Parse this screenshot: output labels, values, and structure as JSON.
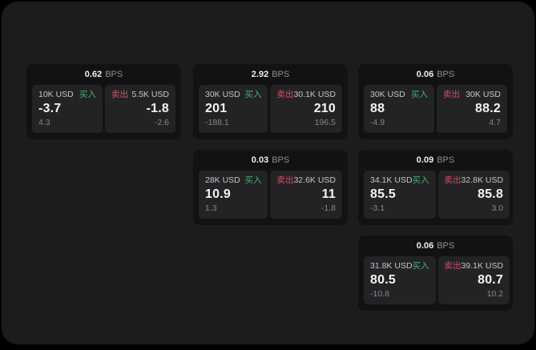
{
  "app": {
    "background_color": "#000000",
    "panel_color": "#1c1c1e",
    "card_color": "#121214",
    "subpanel_color": "#232326"
  },
  "colors": {
    "buy_green": "#4cae6d",
    "sell_red": "#d44f63",
    "value_white": "#f4f4f5",
    "muted_gray": "#87878a",
    "label_gray": "#c6c6c9"
  },
  "cards": [
    {
      "spread": "0.62",
      "unit": "BPS",
      "buy": {
        "amount": "10K USD",
        "side_label": "买入",
        "price": "-3.7",
        "change": "4.3"
      },
      "sell": {
        "side_label": "卖出",
        "amount": "5.5K USD",
        "price": "-1.8",
        "change": "-2.6"
      }
    },
    {
      "spread": "2.92",
      "unit": "BPS",
      "buy": {
        "amount": "30K USD",
        "side_label": "买入",
        "price": "201",
        "change": "-188.1"
      },
      "sell": {
        "side_label": "卖出",
        "amount": "30.1K USD",
        "price": "210",
        "change": "196.5"
      }
    },
    {
      "spread": "0.06",
      "unit": "BPS",
      "buy": {
        "amount": "30K USD",
        "side_label": "买入",
        "price": "88",
        "change": "-4.9"
      },
      "sell": {
        "side_label": "卖出",
        "amount": "30K USD",
        "price": "88.2",
        "change": "4.7"
      }
    },
    {
      "spread": "0.03",
      "unit": "BPS",
      "buy": {
        "amount": "28K USD",
        "side_label": "买入",
        "price": "10.9",
        "change": "1.3"
      },
      "sell": {
        "side_label": "卖出",
        "amount": "32.6K USD",
        "price": "11",
        "change": "-1.8"
      }
    },
    {
      "spread": "0.09",
      "unit": "BPS",
      "buy": {
        "amount": "34.1K USD",
        "side_label": "买入",
        "price": "85.5",
        "change": "-3.1"
      },
      "sell": {
        "side_label": "卖出",
        "amount": "32.8K USD",
        "price": "85.8",
        "change": "3.0"
      }
    },
    {
      "spread": "0.06",
      "unit": "BPS",
      "buy": {
        "amount": "31.8K USD",
        "side_label": "买入",
        "price": "80.5",
        "change": "-10.8"
      },
      "sell": {
        "side_label": "卖出",
        "amount": "39.1K USD",
        "price": "80.7",
        "change": "10.2"
      }
    }
  ]
}
